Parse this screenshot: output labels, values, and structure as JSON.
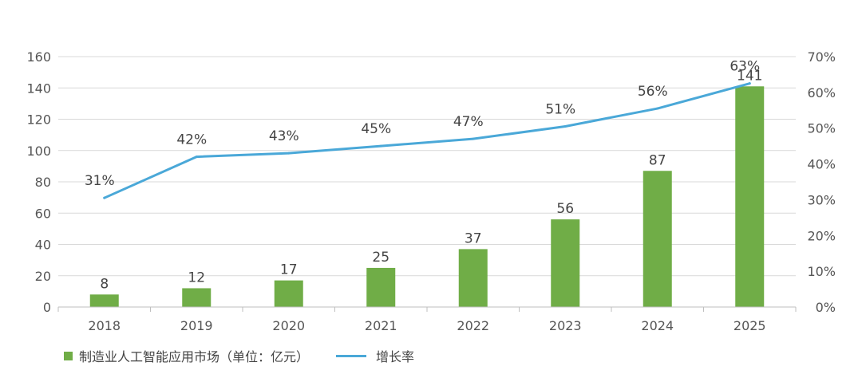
{
  "chart_data": {
    "type": "bar",
    "categories": [
      "2018",
      "2019",
      "2020",
      "2021",
      "2022",
      "2023",
      "2024",
      "2025"
    ],
    "series": [
      {
        "name": "制造业人工智能应用市场（单位：亿元）",
        "type": "bar",
        "axis": "left",
        "color": "#70ad47",
        "values": [
          8,
          12,
          17,
          25,
          37,
          56,
          87,
          141
        ]
      },
      {
        "name": "增长率",
        "type": "line",
        "axis": "right",
        "color": "#4aa8d8",
        "values": [
          30.5,
          42,
          43,
          45,
          47,
          50.5,
          55.5,
          62.5
        ],
        "labels": [
          "31%",
          "42%",
          "43%",
          "45%",
          "47%",
          "51%",
          "56%",
          "63%"
        ]
      }
    ],
    "y_left": {
      "min": 0,
      "max": 160,
      "ticks": [
        "0",
        "20",
        "40",
        "60",
        "80",
        "100",
        "120",
        "140",
        "160"
      ]
    },
    "y_right": {
      "min": 0,
      "max": 70,
      "ticks": [
        "0%",
        "10%",
        "20%",
        "30%",
        "40%",
        "50%",
        "60%",
        "70%"
      ]
    },
    "grid": true,
    "legend_position": "bottom-left"
  }
}
